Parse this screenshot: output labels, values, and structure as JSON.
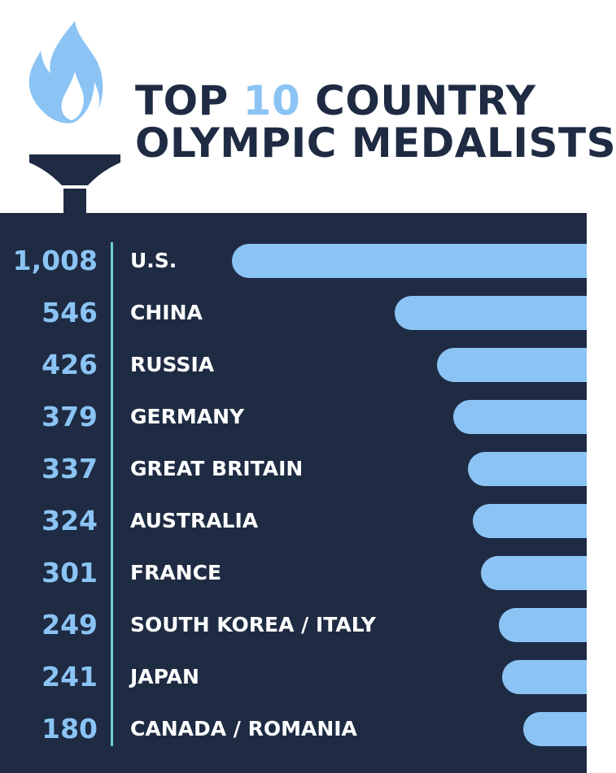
{
  "title": {
    "line1_a": "TOP ",
    "line1_accent": "10",
    "line1_b": " COUNTRY",
    "line2": "OLYMPIC MEDALISTS"
  },
  "colors": {
    "background_dark": "#1e2b43",
    "bar": "#8bc4f4",
    "divider": "#6fd0cf",
    "title": "#1e2b43",
    "label": "#ffffff"
  },
  "icons": {
    "header": "torch-icon"
  },
  "chart_data": {
    "type": "bar",
    "orientation": "horizontal",
    "title": "TOP 10 COUNTRY OLYMPIC MEDALISTS",
    "categories": [
      "U.S.",
      "CHINA",
      "RUSSIA",
      "GERMANY",
      "GREAT BRITAIN",
      "AUSTRALIA",
      "FRANCE",
      "SOUTH KOREA / ITALY",
      "JAPAN",
      "CANADA / ROMANIA"
    ],
    "values": [
      1008,
      546,
      426,
      379,
      337,
      324,
      301,
      249,
      241,
      180
    ],
    "value_labels": [
      "1,008",
      "546",
      "426",
      "379",
      "337",
      "324",
      "301",
      "249",
      "241",
      "180"
    ],
    "xlim": [
      0,
      1008
    ],
    "grid": false,
    "legend": "none"
  }
}
